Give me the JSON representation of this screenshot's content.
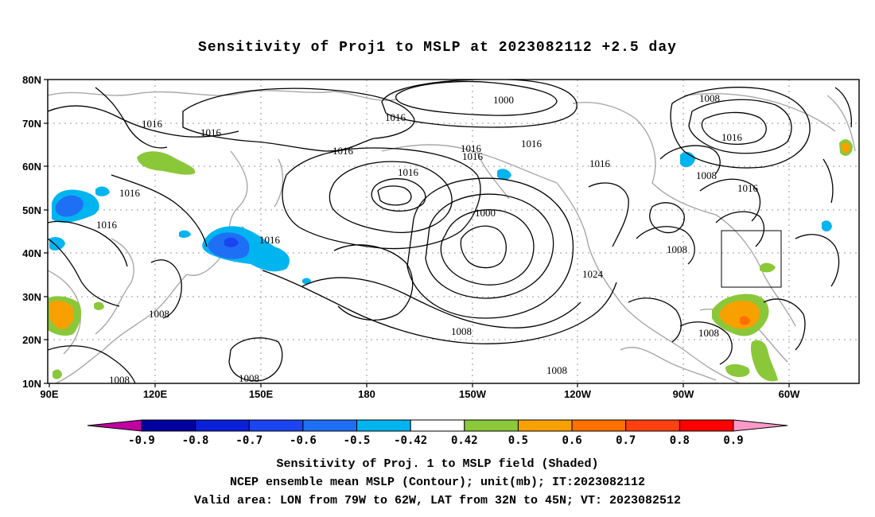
{
  "title": "Sensitivity of Proj1 to MSLP at 2023082112 +2.5 day",
  "lat_labels": [
    "80N",
    "70N",
    "60N",
    "50N",
    "40N",
    "30N",
    "20N",
    "10N"
  ],
  "lon_labels": [
    "90E",
    "120E",
    "150E",
    "180",
    "150W",
    "120W",
    "90W",
    "60W"
  ],
  "contour_labels": [
    "1000",
    "1016",
    "1016",
    "1016",
    "1016",
    "1016",
    "1016",
    "1016",
    "1016",
    "1016",
    "1016",
    "1016",
    "1016",
    "1016",
    "1008",
    "1008",
    "1000",
    "1008",
    "1024",
    "1008",
    "1008",
    "1008",
    "1008",
    "1016",
    "1008",
    "1008"
  ],
  "colorbar": {
    "labels": [
      "-0.9",
      "-0.8",
      "-0.7",
      "-0.6",
      "-0.5",
      "-0.42",
      "0.42",
      "0.5",
      "0.6",
      "0.7",
      "0.8",
      "0.9"
    ],
    "colors": [
      "#0000a0",
      "#0a1fd8",
      "#1a45f0",
      "#1f6ff5",
      "#00b4f0",
      "#ffffff",
      "#8ac83a",
      "#f8a000",
      "#ff7000",
      "#ff4010",
      "#ff0000"
    ],
    "low_color": "#c000a0",
    "high_color": "#ff9ac8"
  },
  "valid_area": {
    "lon_from": "79W",
    "lon_to": "62W",
    "lat_from": "32N",
    "lat_to": "45N"
  },
  "captions": [
    "Sensitivity of Proj. 1 to MSLP field (Shaded)",
    "NCEP ensemble mean MSLP (Contour); unit(mb); IT:2023082112",
    "Valid area: LON from 79W to 62W, LAT from 32N to 45N; VT: 2023082512"
  ]
}
